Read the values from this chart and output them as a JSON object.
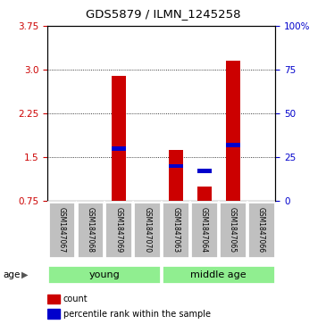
{
  "title": "GDS5879 / ILMN_1245258",
  "samples": [
    "GSM1847067",
    "GSM1847068",
    "GSM1847069",
    "GSM1847070",
    "GSM1847063",
    "GSM1847064",
    "GSM1847065",
    "GSM1847066"
  ],
  "count_values": [
    0.0,
    0.0,
    2.9,
    0.0,
    1.62,
    1.0,
    3.15,
    0.0
  ],
  "pct_pct": [
    0.0,
    0.0,
    30.0,
    0.0,
    20.0,
    17.0,
    32.0,
    0.0
  ],
  "y_min": 0.75,
  "y_max": 3.75,
  "y_ticks_left": [
    0.75,
    1.5,
    2.25,
    3.0,
    3.75
  ],
  "y_ticks_right": [
    0,
    25,
    50,
    75,
    100
  ],
  "bar_color_red": "#CC0000",
  "bar_color_blue": "#0000CC",
  "bar_width": 0.5,
  "tick_color_left": "#CC0000",
  "tick_color_right": "#0000CC",
  "sample_bg_color": "#C0C0C0",
  "group_green": "#90EE90"
}
